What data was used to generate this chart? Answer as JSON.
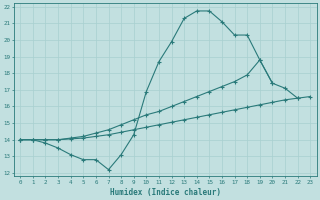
{
  "xlabel": "Humidex (Indice chaleur)",
  "bg_color": "#c2e0e0",
  "line_color": "#2a7a7a",
  "grid_color": "#a8d0d0",
  "xlim": [
    -0.5,
    23.5
  ],
  "ylim": [
    11.8,
    22.2
  ],
  "xticks": [
    0,
    1,
    2,
    3,
    4,
    5,
    6,
    7,
    8,
    9,
    10,
    11,
    12,
    13,
    14,
    15,
    16,
    17,
    18,
    19,
    20,
    21,
    22,
    23
  ],
  "yticks": [
    12,
    13,
    14,
    15,
    16,
    17,
    18,
    19,
    20,
    21,
    22
  ],
  "line1_x": [
    0,
    1,
    2,
    3,
    4,
    5,
    6,
    7,
    8,
    9,
    10,
    11,
    12,
    13,
    14,
    15,
    16,
    17,
    18,
    19,
    20,
    21,
    22
  ],
  "line1_y": [
    14.0,
    14.0,
    13.8,
    13.5,
    13.1,
    12.8,
    12.8,
    12.2,
    13.1,
    14.3,
    16.9,
    18.7,
    19.9,
    21.3,
    21.75,
    21.75,
    21.1,
    20.3,
    20.3,
    18.8,
    17.4,
    17.1,
    16.5
  ],
  "line2_x": [
    0,
    1,
    2,
    3,
    4,
    5,
    6,
    7,
    8,
    9,
    10,
    11,
    12,
    13,
    14,
    15,
    16,
    17,
    18,
    19,
    20
  ],
  "line2_y": [
    14.0,
    14.0,
    14.0,
    14.0,
    14.1,
    14.2,
    14.4,
    14.6,
    14.9,
    15.2,
    15.5,
    15.7,
    16.0,
    16.3,
    16.6,
    16.9,
    17.2,
    17.5,
    17.9,
    18.8,
    17.4
  ],
  "line3_x": [
    0,
    1,
    2,
    3,
    4,
    5,
    6,
    7,
    8,
    9,
    10,
    11,
    12,
    13,
    14,
    15,
    16,
    17,
    18,
    19,
    20,
    21,
    22,
    23
  ],
  "line3_y": [
    14.0,
    14.0,
    14.0,
    14.0,
    14.05,
    14.1,
    14.2,
    14.3,
    14.45,
    14.6,
    14.75,
    14.9,
    15.05,
    15.2,
    15.35,
    15.5,
    15.65,
    15.8,
    15.95,
    16.1,
    16.25,
    16.4,
    16.5,
    16.6
  ]
}
